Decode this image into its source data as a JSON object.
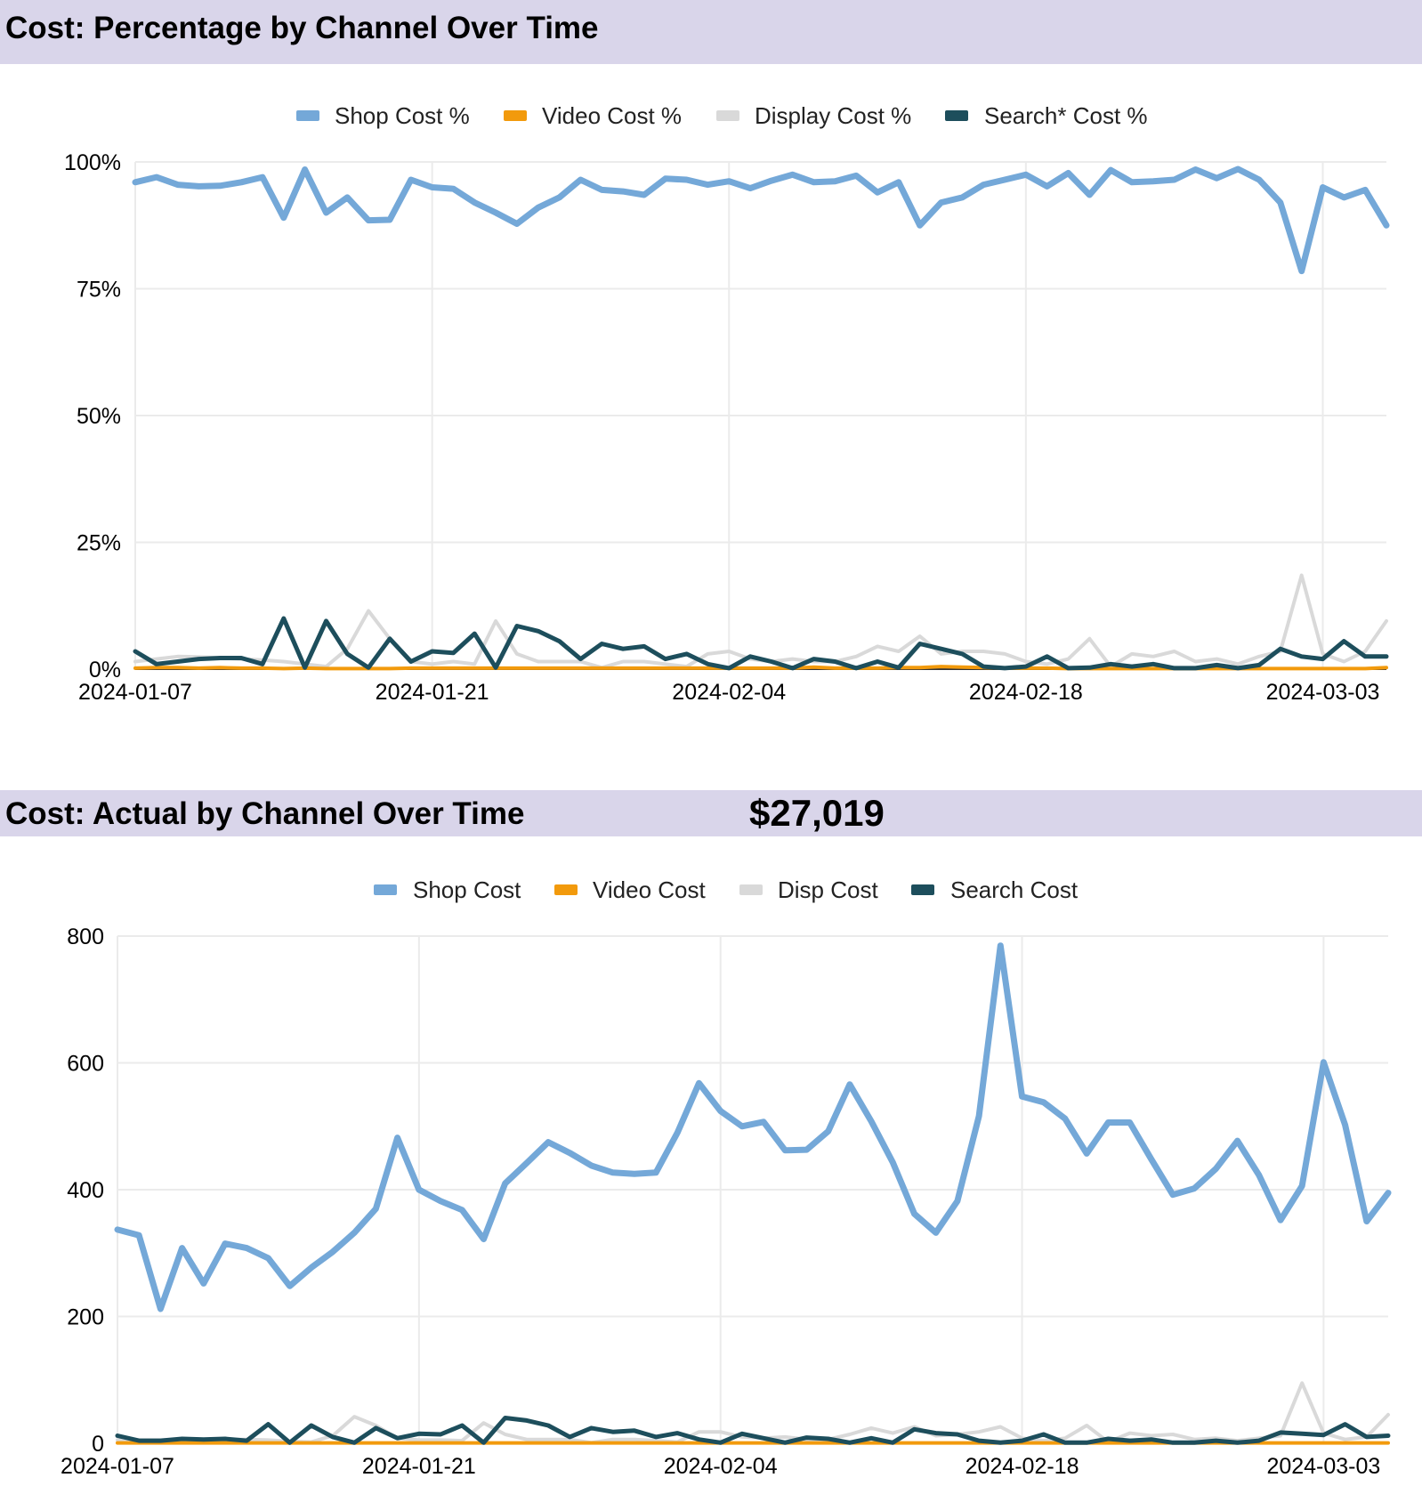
{
  "sections": {
    "percentage": {
      "title": "Cost: Percentage by Channel Over Time"
    },
    "actual": {
      "title": "Cost: Actual by Channel Over Time",
      "total": "$27,019"
    }
  },
  "colors": {
    "shop": "#74a8d8",
    "video": "#f29a0c",
    "display": "#d9d9d9",
    "search": "#1d4e5c",
    "header_bg": "#d9d5ea",
    "grid": "#ebebeb"
  },
  "chart_data": [
    {
      "type": "line",
      "title": "Cost: Percentage by Channel Over Time",
      "x_start": "2024-01-07",
      "x_tick_labels": [
        "2024-01-07",
        "2024-01-21",
        "2024-02-04",
        "2024-02-18",
        "2024-03-03"
      ],
      "y_tick_labels": [
        "0%",
        "25%",
        "50%",
        "75%",
        "100%"
      ],
      "ylim": [
        0,
        100
      ],
      "grid": true,
      "legend_position": "top",
      "series": [
        {
          "name": "Shop Cost %",
          "color": "#74a8d8",
          "width": 7,
          "values": [
            96.0,
            97.0,
            95.5,
            95.2,
            95.3,
            96.0,
            97.0,
            89.0,
            98.5,
            90.0,
            93.0,
            88.5,
            88.6,
            96.5,
            95.0,
            94.7,
            92.0,
            90.0,
            87.8,
            91.0,
            93.0,
            96.5,
            94.5,
            94.2,
            93.5,
            96.7,
            96.5,
            95.5,
            96.2,
            94.8,
            96.3,
            97.5,
            96.0,
            96.2,
            97.3,
            94.0,
            96.0,
            87.5,
            92.0,
            93.0,
            95.5,
            96.5,
            97.5,
            95.2,
            97.8,
            93.5,
            98.4,
            96.0,
            96.2,
            96.5,
            98.5,
            96.8,
            98.6,
            96.5,
            92.0,
            78.5,
            95.0,
            93.0,
            94.5,
            87.5
          ]
        },
        {
          "name": "Video Cost %",
          "color": "#f29a0c",
          "width": 4,
          "values": [
            0.2,
            0.3,
            0.3,
            0.2,
            0.3,
            0.2,
            0.2,
            0.1,
            0.2,
            0.1,
            0.1,
            0.1,
            0.1,
            0.2,
            0.2,
            0.2,
            0.2,
            0.2,
            0.2,
            0.2,
            0.2,
            0.2,
            0.2,
            0.2,
            0.2,
            0.2,
            0.2,
            0.2,
            0.2,
            0.2,
            0.2,
            0.2,
            0.4,
            0.2,
            0.2,
            0.2,
            0.3,
            0.3,
            0.5,
            0.4,
            0.3,
            0.2,
            0.2,
            0.2,
            0.1,
            0.1,
            0.1,
            0.1,
            0.1,
            0.1,
            0.1,
            0.1,
            0.1,
            0.1,
            0.1,
            0.1,
            0.1,
            0.1,
            0.1,
            0.3
          ]
        },
        {
          "name": "Display Cost %",
          "color": "#d9d9d9",
          "width": 4,
          "values": [
            1.5,
            2.0,
            2.5,
            2.4,
            2.2,
            2.0,
            1.8,
            1.5,
            1.0,
            0.5,
            4.0,
            11.5,
            6.0,
            1.5,
            1.0,
            1.5,
            1.0,
            9.5,
            3.0,
            1.5,
            1.5,
            1.5,
            0.3,
            1.5,
            1.5,
            1.0,
            0.5,
            3.0,
            3.5,
            2.0,
            1.5,
            2.0,
            1.5,
            1.5,
            2.5,
            4.5,
            3.5,
            6.5,
            3.0,
            3.5,
            3.5,
            3.0,
            1.5,
            1.0,
            2.0,
            6.0,
            0.5,
            3.0,
            2.5,
            3.5,
            1.5,
            2.0,
            1.0,
            2.5,
            3.5,
            18.5,
            3.0,
            1.5,
            3.5,
            9.5
          ]
        },
        {
          "name": "Search* Cost %",
          "color": "#1d4e5c",
          "width": 5,
          "values": [
            3.5,
            1.0,
            1.5,
            2.0,
            2.2,
            2.2,
            1.0,
            10.0,
            0.3,
            9.5,
            3.0,
            0.3,
            6.0,
            1.5,
            3.5,
            3.2,
            7.0,
            0.3,
            8.5,
            7.5,
            5.5,
            2.0,
            5.0,
            4.0,
            4.5,
            2.0,
            3.0,
            1.0,
            0.2,
            2.5,
            1.5,
            0.2,
            2.0,
            1.5,
            0.2,
            1.5,
            0.3,
            5.0,
            4.0,
            3.0,
            0.5,
            0.2,
            0.5,
            2.5,
            0.2,
            0.3,
            1.0,
            0.5,
            1.0,
            0.2,
            0.2,
            0.8,
            0.2,
            0.8,
            4.0,
            2.5,
            2.0,
            5.5,
            2.5,
            2.5
          ]
        }
      ]
    },
    {
      "type": "line",
      "title": "Cost: Actual by Channel Over Time",
      "x_start": "2024-01-07",
      "x_tick_labels": [
        "2024-01-07",
        "2024-01-21",
        "2024-02-04",
        "2024-02-18",
        "2024-03-03"
      ],
      "y_tick_labels": [
        "0",
        "200",
        "400",
        "600",
        "800"
      ],
      "ylim": [
        0,
        800
      ],
      "grid": true,
      "legend_position": "top",
      "series": [
        {
          "name": "Shop Cost",
          "color": "#74a8d8",
          "width": 7,
          "values": [
            337,
            328,
            212,
            308,
            252,
            315,
            308,
            292,
            248,
            277,
            302,
            332,
            370,
            482,
            400,
            382,
            368,
            322,
            410,
            442,
            475,
            458,
            438,
            427,
            425,
            427,
            490,
            568,
            524,
            500,
            507,
            462,
            463,
            492,
            566,
            508,
            443,
            362,
            332,
            382,
            516,
            785,
            547,
            538,
            512,
            457,
            506,
            506,
            448,
            392,
            402,
            433,
            477,
            423,
            352,
            406,
            601,
            502,
            350,
            395
          ]
        },
        {
          "name": "Video Cost",
          "color": "#f29a0c",
          "width": 4,
          "values": [
            0.5,
            0.5,
            0.5,
            0.5,
            0.5,
            0.5,
            0.5,
            0.5,
            0.5,
            0.5,
            0.5,
            0.5,
            0.5,
            0.5,
            0.5,
            0.5,
            0.5,
            0.5,
            0.5,
            0.5,
            0.5,
            0.5,
            0.5,
            0.5,
            0.5,
            0.5,
            0.5,
            0.5,
            0.5,
            0.5,
            0.5,
            0.5,
            0.5,
            0.5,
            0.5,
            0.5,
            0.5,
            0.5,
            0.5,
            0.5,
            0.5,
            0.5,
            0.5,
            0.5,
            0.5,
            0.5,
            0.5,
            0.5,
            0.5,
            0.5,
            0.5,
            0.5,
            0.5,
            0.5,
            0.5,
            0.5,
            0.5,
            0.5,
            0.5,
            0.5
          ]
        },
        {
          "name": "Disp Cost",
          "color": "#d9d9d9",
          "width": 4,
          "values": [
            5,
            5,
            5,
            6,
            6,
            6,
            6,
            5,
            3,
            2,
            12,
            42,
            28,
            8,
            5,
            5,
            4,
            32,
            14,
            6,
            6,
            6,
            1,
            6,
            6,
            4,
            2,
            18,
            18,
            10,
            8,
            10,
            6,
            6,
            14,
            24,
            16,
            26,
            12,
            14,
            18,
            26,
            8,
            4,
            8,
            28,
            2,
            16,
            12,
            14,
            6,
            8,
            4,
            8,
            12,
            95,
            16,
            6,
            10,
            45
          ]
        },
        {
          "name": "Search Cost",
          "color": "#1d4e5c",
          "width": 5,
          "values": [
            12,
            4,
            4,
            7,
            6,
            7,
            4,
            30,
            1,
            28,
            10,
            1,
            24,
            8,
            15,
            14,
            28,
            1,
            40,
            36,
            28,
            10,
            24,
            18,
            20,
            10,
            16,
            6,
            1,
            15,
            8,
            1,
            9,
            7,
            1,
            8,
            1,
            22,
            16,
            14,
            4,
            1,
            4,
            14,
            1,
            1,
            7,
            4,
            6,
            1,
            1,
            4,
            1,
            4,
            17,
            15,
            13,
            30,
            10,
            12
          ]
        }
      ]
    }
  ]
}
